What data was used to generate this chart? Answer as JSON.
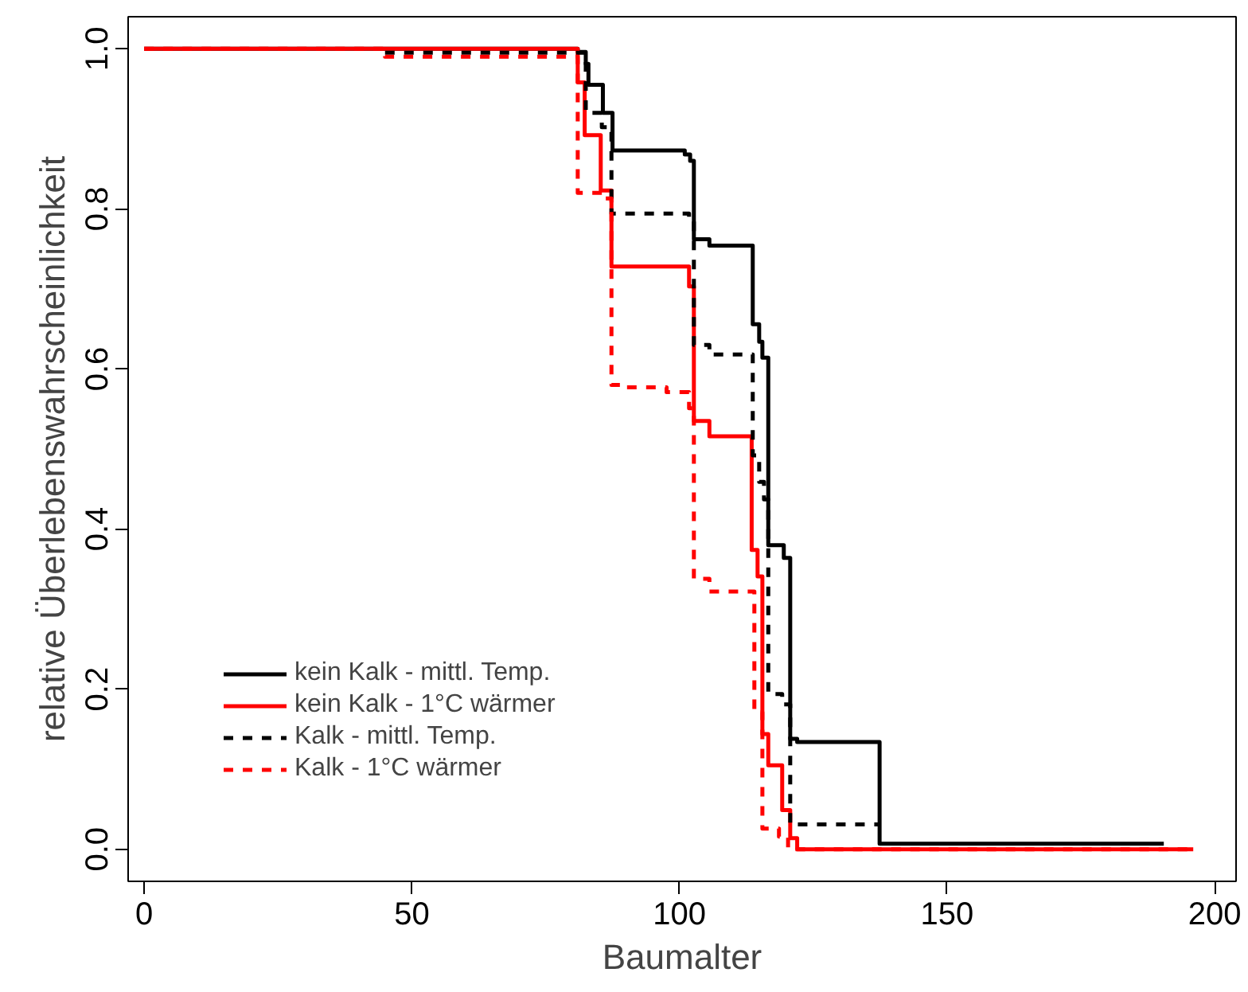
{
  "chart_data": {
    "type": "step",
    "xlabel": "Baumalter",
    "ylabel": "relative Überlebenswahrscheinlichkeit",
    "xlim": [
      -3,
      204
    ],
    "ylim": [
      -0.04,
      1.04
    ],
    "xticks": [
      0,
      50,
      100,
      150,
      200
    ],
    "yticks": [
      {
        "value": 0,
        "label": "0.0"
      },
      0.2,
      0.4,
      0.6,
      0.8,
      {
        "value": 1,
        "label": "1.0"
      }
    ],
    "grid": false,
    "legend": "bottom left",
    "series": [
      {
        "name": "kein Kalk - mittl. Temp.",
        "color": "#000000",
        "line_style": "solid",
        "x": [
          0,
          81,
          82.5,
          83,
          85.7,
          87.5,
          101,
          102,
          102.7,
          105.6,
          113.7,
          114.9,
          115.5,
          116.6,
          119.5,
          120.7,
          122,
          137.4,
          190.5
        ],
        "values": [
          1.0,
          0.996,
          0.981,
          0.955,
          0.92,
          0.873,
          0.868,
          0.86,
          0.762,
          0.754,
          0.656,
          0.634,
          0.614,
          0.38,
          0.364,
          0.138,
          0.134,
          0.007,
          0.007
        ]
      },
      {
        "name": "kein Kalk - 1°C wärmer",
        "color": "#ff0000",
        "line_style": "solid",
        "x": [
          0,
          81,
          82.3,
          85.3,
          87.3,
          101.8,
          102.7,
          105.6,
          113.5,
          114.6,
          115.5,
          116.6,
          119.2,
          120.7,
          122,
          196
        ],
        "values": [
          1.0,
          0.958,
          0.892,
          0.823,
          0.728,
          0.703,
          0.535,
          0.516,
          0.374,
          0.341,
          0.144,
          0.105,
          0.049,
          0.014,
          0.0,
          0.0
        ]
      },
      {
        "name": "Kalk - mittl. Temp.",
        "color": "#000000",
        "line_style": "dashed",
        "x": [
          45,
          82.5,
          85.5,
          87.3,
          101.8,
          102.7,
          105.6,
          113.7,
          114.9,
          115.8,
          116.6,
          119.2,
          120.7,
          122,
          137.4
        ],
        "values": [
          0.995,
          0.92,
          0.902,
          0.794,
          0.788,
          0.63,
          0.618,
          0.492,
          0.459,
          0.437,
          0.194,
          0.181,
          0.033,
          0.031,
          0.031
        ]
      },
      {
        "name": "Kalk - 1°C wärmer",
        "color": "#ff0000",
        "line_style": "dashed",
        "x": [
          0,
          45,
          81,
          86,
          87.3,
          90,
          97.6,
          101.8,
          102.7,
          105.6,
          114,
          115.5,
          118.6,
          120.3,
          196
        ],
        "values": [
          1.0,
          0.99,
          0.82,
          0.813,
          0.58,
          0.577,
          0.571,
          0.551,
          0.338,
          0.322,
          0.171,
          0.026,
          0.016,
          0.0,
          0.0
        ]
      }
    ]
  }
}
